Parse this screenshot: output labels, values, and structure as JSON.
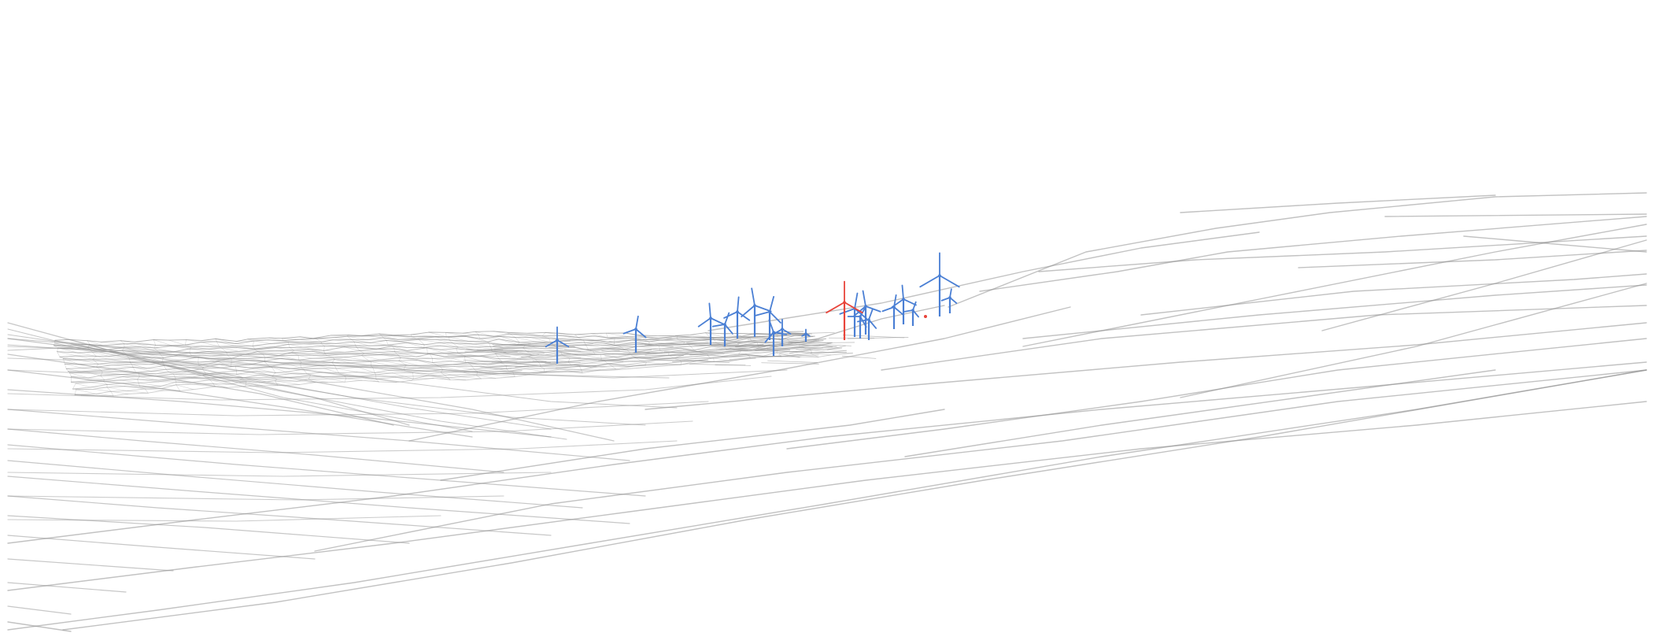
{
  "scene": {
    "background_color": "#ffffff",
    "terrain_color": "#8f8f8f",
    "turbine_color": "#4a7fd4",
    "selected_turbine_color": "#e8443a",
    "turbine_count": 20,
    "selected_turbine_index": 14
  }
}
